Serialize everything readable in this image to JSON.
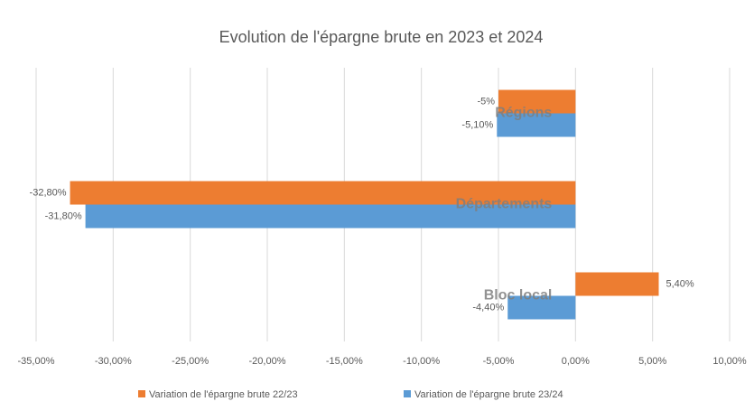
{
  "chart_data": {
    "type": "barh",
    "title": "Evolution de l'épargne brute en  2023 et  2024",
    "categories": [
      "Régions",
      "Départements",
      "Bloc local"
    ],
    "series": [
      {
        "name": "Variation de l'épargne  brute  22/23",
        "color": "#ed7d31",
        "values": [
          -5,
          -32.8,
          5.4
        ],
        "value_labels": [
          "-5%",
          "-32,80%",
          "5,40%"
        ]
      },
      {
        "name": "Variation de l'épargne  brute  23/24",
        "color": "#5b9bd5",
        "values": [
          -5.1,
          -31.8,
          -4.4
        ],
        "value_labels": [
          "-5,10%",
          "-31,80%",
          "-4,40%"
        ]
      }
    ],
    "xlim": [
      -35,
      10
    ],
    "xticks": [
      {
        "value": -35,
        "label": "-35,00%"
      },
      {
        "value": -30,
        "label": "-30,00%"
      },
      {
        "value": -25,
        "label": "-25,00%"
      },
      {
        "value": -20,
        "label": "-20,00%"
      },
      {
        "value": -15,
        "label": "-15,00%"
      },
      {
        "value": -10,
        "label": "-10,00%"
      },
      {
        "value": -5,
        "label": "-5,00%"
      },
      {
        "value": 0,
        "label": "0,00%"
      },
      {
        "value": 5,
        "label": "5,00%"
      },
      {
        "value": 10,
        "label": "10,00%"
      }
    ],
    "grid": true,
    "legend": "bottom"
  }
}
